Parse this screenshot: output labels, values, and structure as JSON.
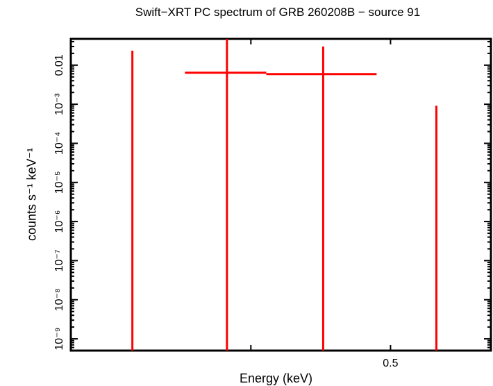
{
  "chart_data": {
    "type": "scatter",
    "title": "Swift−XRT PC spectrum of GRB 260208B − source 91",
    "xlabel": "Energy (keV)",
    "ylabel": "counts s⁻¹ keV⁻¹",
    "xscale": "log",
    "yscale": "log",
    "xlim": [
      0.3,
      0.587
    ],
    "ylim": [
      5e-10,
      0.047
    ],
    "x_ticks": [
      0.4,
      0.5
    ],
    "x_tick_labels": [
      "",
      "0.5"
    ],
    "y_ticks": [
      0.01,
      0.001,
      0.0001,
      1e-05,
      1e-06,
      1e-07,
      1e-08,
      1e-09
    ],
    "y_tick_labels": [
      "0.01",
      "10⁻³",
      "10⁻⁴",
      "10⁻⁵",
      "10⁻⁶",
      "10⁻⁷",
      "10⁻⁸",
      "10⁻⁹"
    ],
    "grid": false,
    "series_color": "#ff0000",
    "points": [
      {
        "x": 0.331,
        "xlo": 0.331,
        "xhi": 0.331,
        "y": null,
        "ylo": null,
        "yhi": 0.0235
      },
      {
        "x": 0.385,
        "xlo": 0.36,
        "xhi": 0.41,
        "y": 0.0064,
        "ylo": null,
        "yhi": null
      },
      {
        "x": 0.449,
        "xlo": 0.41,
        "xhi": 0.489,
        "y": 0.0059,
        "ylo": null,
        "yhi": 0.03
      },
      {
        "x": 0.538,
        "xlo": 0.538,
        "xhi": 0.538,
        "y": null,
        "ylo": null,
        "yhi": 0.00092
      }
    ]
  }
}
